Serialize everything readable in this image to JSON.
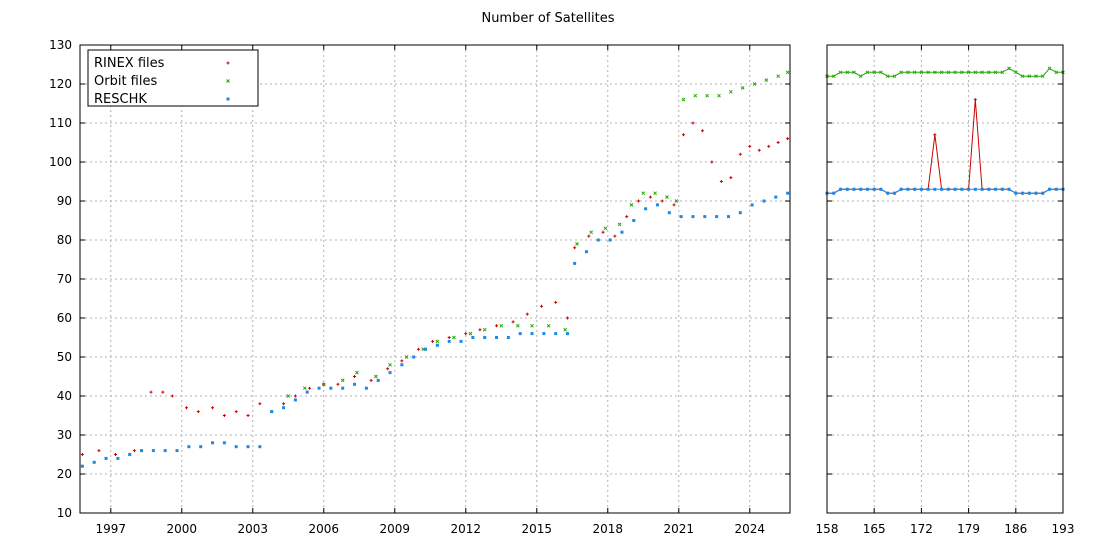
{
  "chart_data": [
    {
      "type": "scatter",
      "title": "Number of Satellites",
      "xlabel": "",
      "ylabel": "",
      "xlim": [
        1995.7,
        2025.7
      ],
      "ylim": [
        10,
        130
      ],
      "x_ticks": [
        1997,
        2000,
        2003,
        2006,
        2009,
        2012,
        2015,
        2018,
        2021,
        2024
      ],
      "y_ticks": [
        10,
        20,
        30,
        40,
        50,
        60,
        70,
        80,
        90,
        100,
        110,
        120,
        130
      ],
      "grid": true,
      "legend": "top-left",
      "series": [
        {
          "name": "RINEX files",
          "color": "#cc0000",
          "marker": "plus",
          "points": [
            [
              1995.8,
              25
            ],
            [
              1996.5,
              26
            ],
            [
              1997.2,
              25
            ],
            [
              1998.0,
              26
            ],
            [
              1998.7,
              41
            ],
            [
              1999.2,
              41
            ],
            [
              1999.6,
              40
            ],
            [
              2000.2,
              37
            ],
            [
              2000.7,
              36
            ],
            [
              2001.3,
              37
            ],
            [
              2001.8,
              35
            ],
            [
              2002.3,
              36
            ],
            [
              2002.8,
              35
            ],
            [
              2003.3,
              38
            ],
            [
              2003.8,
              36
            ],
            [
              2004.3,
              38
            ],
            [
              2004.8,
              40
            ],
            [
              2005.4,
              42
            ],
            [
              2006.0,
              43
            ],
            [
              2006.6,
              43
            ],
            [
              2007.3,
              45
            ],
            [
              2008.0,
              44
            ],
            [
              2008.7,
              47
            ],
            [
              2009.3,
              49
            ],
            [
              2010.0,
              52
            ],
            [
              2010.6,
              54
            ],
            [
              2011.3,
              55
            ],
            [
              2012.0,
              56
            ],
            [
              2012.6,
              57
            ],
            [
              2013.3,
              58
            ],
            [
              2014.0,
              59
            ],
            [
              2014.6,
              61
            ],
            [
              2015.2,
              63
            ],
            [
              2015.8,
              64
            ],
            [
              2016.3,
              60
            ],
            [
              2016.6,
              78
            ],
            [
              2017.2,
              81
            ],
            [
              2017.8,
              82
            ],
            [
              2018.3,
              81
            ],
            [
              2018.8,
              86
            ],
            [
              2019.3,
              90
            ],
            [
              2019.8,
              91
            ],
            [
              2020.3,
              90
            ],
            [
              2020.8,
              89
            ],
            [
              2021.2,
              107
            ],
            [
              2021.6,
              110
            ],
            [
              2022.0,
              108
            ],
            [
              2022.4,
              100
            ],
            [
              2022.8,
              95
            ],
            [
              2023.2,
              96
            ],
            [
              2023.6,
              102
            ],
            [
              2024.0,
              104
            ],
            [
              2024.4,
              103
            ],
            [
              2024.8,
              104
            ],
            [
              2025.2,
              105
            ],
            [
              2025.6,
              106
            ]
          ]
        },
        {
          "name": "Orbit files",
          "color": "#22aa00",
          "marker": "cross",
          "points": [
            [
              2004.5,
              40
            ],
            [
              2005.2,
              42
            ],
            [
              2006.0,
              43
            ],
            [
              2006.8,
              44
            ],
            [
              2007.4,
              46
            ],
            [
              2008.2,
              45
            ],
            [
              2008.8,
              48
            ],
            [
              2009.5,
              50
            ],
            [
              2010.2,
              52
            ],
            [
              2010.8,
              54
            ],
            [
              2011.5,
              55
            ],
            [
              2012.2,
              56
            ],
            [
              2012.8,
              57
            ],
            [
              2013.5,
              58
            ],
            [
              2014.2,
              58
            ],
            [
              2014.8,
              58
            ],
            [
              2015.5,
              58
            ],
            [
              2016.2,
              57
            ],
            [
              2016.7,
              79
            ],
            [
              2017.3,
              82
            ],
            [
              2017.9,
              83
            ],
            [
              2018.5,
              84
            ],
            [
              2019.0,
              89
            ],
            [
              2019.5,
              92
            ],
            [
              2020.0,
              92
            ],
            [
              2020.5,
              91
            ],
            [
              2020.9,
              90
            ],
            [
              2021.2,
              116
            ],
            [
              2021.7,
              117
            ],
            [
              2022.2,
              117
            ],
            [
              2022.7,
              117
            ],
            [
              2023.2,
              118
            ],
            [
              2023.7,
              119
            ],
            [
              2024.2,
              120
            ],
            [
              2024.7,
              121
            ],
            [
              2025.2,
              122
            ],
            [
              2025.6,
              123
            ]
          ]
        },
        {
          "name": "RESCHK",
          "color": "#1e88e5",
          "marker": "square",
          "points": [
            [
              1995.8,
              22
            ],
            [
              1996.3,
              23
            ],
            [
              1996.8,
              24
            ],
            [
              1997.3,
              24
            ],
            [
              1997.8,
              25
            ],
            [
              1998.3,
              26
            ],
            [
              1998.8,
              26
            ],
            [
              1999.3,
              26
            ],
            [
              1999.8,
              26
            ],
            [
              2000.3,
              27
            ],
            [
              2000.8,
              27
            ],
            [
              2001.3,
              28
            ],
            [
              2001.8,
              28
            ],
            [
              2002.3,
              27
            ],
            [
              2002.8,
              27
            ],
            [
              2003.3,
              27
            ],
            [
              2003.8,
              36
            ],
            [
              2004.3,
              37
            ],
            [
              2004.8,
              39
            ],
            [
              2005.3,
              41
            ],
            [
              2005.8,
              42
            ],
            [
              2006.3,
              42
            ],
            [
              2006.8,
              42
            ],
            [
              2007.3,
              43
            ],
            [
              2007.8,
              42
            ],
            [
              2008.3,
              44
            ],
            [
              2008.8,
              46
            ],
            [
              2009.3,
              48
            ],
            [
              2009.8,
              50
            ],
            [
              2010.3,
              52
            ],
            [
              2010.8,
              53
            ],
            [
              2011.3,
              54
            ],
            [
              2011.8,
              54
            ],
            [
              2012.3,
              55
            ],
            [
              2012.8,
              55
            ],
            [
              2013.3,
              55
            ],
            [
              2013.8,
              55
            ],
            [
              2014.3,
              56
            ],
            [
              2014.8,
              56
            ],
            [
              2015.3,
              56
            ],
            [
              2015.8,
              56
            ],
            [
              2016.3,
              56
            ],
            [
              2016.6,
              74
            ],
            [
              2017.1,
              77
            ],
            [
              2017.6,
              80
            ],
            [
              2018.1,
              80
            ],
            [
              2018.6,
              82
            ],
            [
              2019.1,
              85
            ],
            [
              2019.6,
              88
            ],
            [
              2020.1,
              89
            ],
            [
              2020.6,
              87
            ],
            [
              2021.1,
              86
            ],
            [
              2021.6,
              86
            ],
            [
              2022.1,
              86
            ],
            [
              2022.6,
              86
            ],
            [
              2023.1,
              86
            ],
            [
              2023.6,
              87
            ],
            [
              2024.1,
              89
            ],
            [
              2024.6,
              90
            ],
            [
              2025.1,
              91
            ],
            [
              2025.6,
              92
            ]
          ]
        }
      ]
    },
    {
      "type": "line",
      "title": "",
      "xlabel": "",
      "ylabel": "",
      "xlim": [
        158,
        193
      ],
      "ylim": [
        10,
        130
      ],
      "x_ticks": [
        158,
        165,
        172,
        179,
        186,
        193
      ],
      "y_ticks": [
        10,
        20,
        30,
        40,
        50,
        60,
        70,
        80,
        90,
        100,
        110,
        120,
        130
      ],
      "grid": true,
      "series": [
        {
          "name": "Orbit files",
          "color": "#22aa00",
          "marker": "cross",
          "x": [
            158,
            159,
            160,
            161,
            162,
            163,
            164,
            165,
            166,
            167,
            168,
            169,
            170,
            171,
            172,
            173,
            174,
            175,
            176,
            177,
            178,
            179,
            180,
            181,
            182,
            183,
            184,
            185,
            186,
            187,
            188,
            189,
            190,
            191,
            192,
            193
          ],
          "y": [
            122,
            122,
            123,
            123,
            123,
            122,
            123,
            123,
            123,
            122,
            122,
            123,
            123,
            123,
            123,
            123,
            123,
            123,
            123,
            123,
            123,
            123,
            123,
            123,
            123,
            123,
            123,
            124,
            123,
            122,
            122,
            122,
            122,
            124,
            123,
            123
          ]
        },
        {
          "name": "RINEX files",
          "color": "#cc0000",
          "marker": "plus",
          "x": [
            158,
            159,
            160,
            161,
            162,
            163,
            164,
            165,
            166,
            167,
            168,
            169,
            170,
            171,
            172,
            173,
            174,
            175,
            176,
            177,
            178,
            179,
            180,
            181,
            182,
            183,
            184,
            185,
            186,
            187,
            188,
            189,
            190,
            191,
            192,
            193
          ],
          "y": [
            92,
            92,
            93,
            93,
            93,
            93,
            93,
            93,
            93,
            92,
            92,
            93,
            93,
            93,
            93,
            93,
            107,
            93,
            93,
            93,
            93,
            93,
            116,
            93,
            93,
            93,
            93,
            93,
            92,
            92,
            92,
            92,
            92,
            93,
            93,
            93
          ]
        },
        {
          "name": "RESCHK",
          "color": "#1e88e5",
          "marker": "square",
          "x": [
            158,
            159,
            160,
            161,
            162,
            163,
            164,
            165,
            166,
            167,
            168,
            169,
            170,
            171,
            172,
            173,
            174,
            175,
            176,
            177,
            178,
            179,
            180,
            181,
            182,
            183,
            184,
            185,
            186,
            187,
            188,
            189,
            190,
            191,
            192,
            193
          ],
          "y": [
            92,
            92,
            93,
            93,
            93,
            93,
            93,
            93,
            93,
            92,
            92,
            93,
            93,
            93,
            93,
            93,
            93,
            93,
            93,
            93,
            93,
            93,
            93,
            93,
            93,
            93,
            93,
            93,
            92,
            92,
            92,
            92,
            92,
            93,
            93,
            93
          ]
        }
      ]
    }
  ]
}
